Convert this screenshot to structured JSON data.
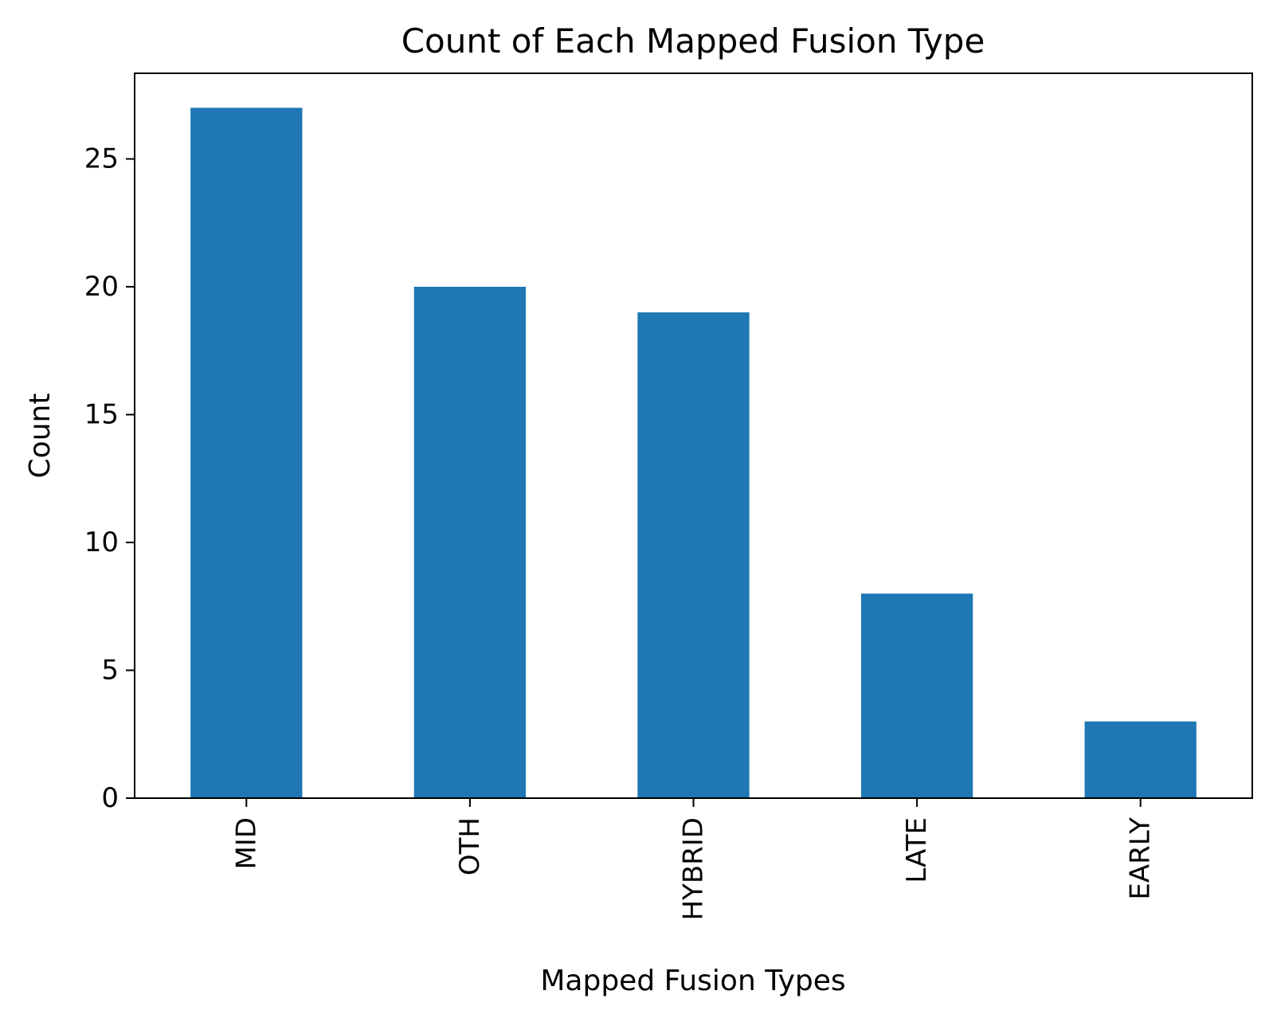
{
  "colors": {
    "bar": "#1f77b4",
    "axis": "#000000",
    "background": "#ffffff"
  },
  "chart_data": {
    "type": "bar",
    "title": "Count of Each Mapped Fusion Type",
    "xlabel": "Mapped Fusion Types",
    "ylabel": "Count",
    "categories": [
      "MID",
      "OTH",
      "HYBRID",
      "LATE",
      "EARLY"
    ],
    "values": [
      27,
      20,
      19,
      8,
      3
    ],
    "ylim": [
      0,
      28.35
    ],
    "yticks": [
      0,
      5,
      10,
      15,
      20,
      25
    ],
    "grid": false,
    "legend": "none"
  }
}
